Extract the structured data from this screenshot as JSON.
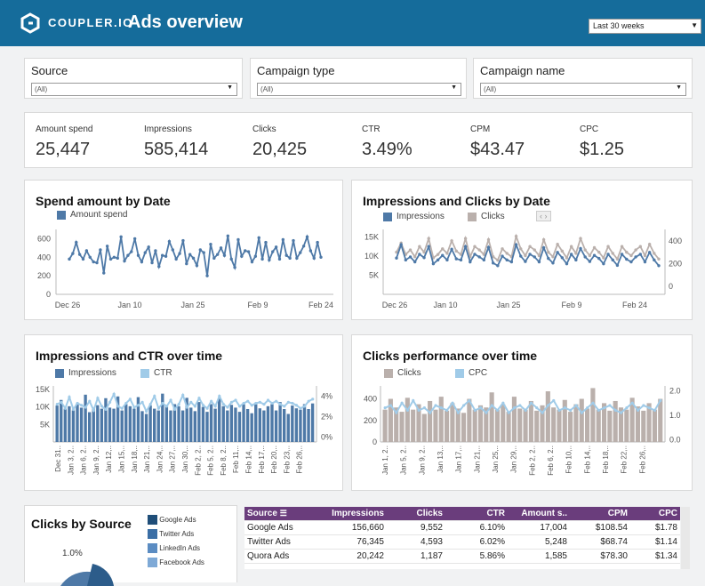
{
  "header": {
    "logo_text": "COUPLER.IO",
    "title": "Ads overview",
    "date_range": "Last 30 weeks"
  },
  "filters": [
    {
      "label": "Source",
      "value": "(All)"
    },
    {
      "label": "Campaign type",
      "value": "(All)"
    },
    {
      "label": "Campaign name",
      "value": "(All)"
    }
  ],
  "kpis": [
    {
      "label": "Amount spend",
      "value": "25,447"
    },
    {
      "label": "Impressions",
      "value": "585,414"
    },
    {
      "label": "Clicks",
      "value": "20,425"
    },
    {
      "label": "CTR",
      "value": "3.49%"
    },
    {
      "label": "CPM",
      "value": "$43.47"
    },
    {
      "label": "CPC",
      "value": "$1.25"
    }
  ],
  "colors": {
    "header": "#156c9b",
    "primary": "#4e79a7",
    "light_blue": "#a0cbe8",
    "gray": "#bab0ac",
    "table_head": "#6a3d7c"
  },
  "chart_data": [
    {
      "type": "line",
      "title": "Spend amount by Date",
      "series": [
        {
          "name": "Amount spend",
          "values": [
            380,
            440,
            560,
            430,
            380,
            470,
            400,
            350,
            340,
            480,
            230,
            520,
            380,
            400,
            390,
            620,
            360,
            420,
            460,
            600,
            420,
            350,
            450,
            510,
            340,
            470,
            300,
            420,
            410,
            570,
            480,
            380,
            440,
            580,
            330,
            430,
            390,
            310,
            480,
            450,
            200,
            540,
            390,
            430,
            500,
            420,
            630,
            380,
            290,
            590,
            410,
            470,
            460,
            350,
            410,
            610,
            380,
            560,
            370,
            460,
            510,
            380,
            590,
            420,
            390,
            580,
            390,
            450,
            520,
            620,
            470,
            390,
            560,
            400
          ]
        }
      ],
      "x_ticks": [
        "Dec 26",
        "Jan 10",
        "Jan 25",
        "Feb 9",
        "Feb 24"
      ],
      "y_ticks": [
        "0",
        "200",
        "400",
        "600"
      ],
      "ylim": [
        0,
        700
      ]
    },
    {
      "type": "line",
      "title": "Impressions and Clicks by Date",
      "series": [
        {
          "name": "Impressions",
          "values": [
            9500,
            13000,
            9000,
            9800,
            8500,
            10500,
            9600,
            12500,
            8000,
            9000,
            10200,
            9000,
            11800,
            9300,
            9000,
            12500,
            8500,
            10500,
            9800,
            9000,
            12300,
            8200,
            7500,
            10000,
            9000,
            8500,
            13000,
            10000,
            8600,
            10500,
            9800,
            8500,
            12200,
            9400,
            8200,
            11000,
            9600,
            8000,
            10500,
            9000,
            12000,
            9800,
            8600,
            10200,
            9400,
            8000,
            10500,
            9000,
            7600,
            10500,
            9200,
            8500,
            9800,
            10500,
            8500,
            11000,
            9000,
            7500
          ]
        },
        {
          "name": "Clicks",
          "values": [
            300,
            380,
            280,
            320,
            260,
            350,
            300,
            420,
            250,
            280,
            330,
            290,
            400,
            310,
            280,
            420,
            260,
            350,
            320,
            280,
            410,
            260,
            230,
            330,
            290,
            260,
            440,
            330,
            270,
            350,
            320,
            270,
            410,
            300,
            260,
            370,
            310,
            250,
            350,
            290,
            420,
            320,
            270,
            340,
            300,
            250,
            350,
            290,
            240,
            350,
            300,
            270,
            320,
            350,
            270,
            370,
            290,
            240
          ]
        }
      ],
      "x_ticks": [
        "Dec 26",
        "Jan 10",
        "Jan 25",
        "Feb 9",
        "Feb 24"
      ],
      "y_left_ticks": [
        "5K",
        "10K",
        "15K"
      ],
      "y_right_ticks": [
        "0",
        "200",
        "400"
      ],
      "page_arrows": "‹ ›"
    },
    {
      "type": "bar",
      "title": "Impressions and CTR over time",
      "series": [
        {
          "name": "Impressions",
          "values": [
            10400,
            12000,
            9500,
            10200,
            9000,
            11000,
            9800,
            13500,
            8500,
            9800,
            10500,
            9500,
            12500,
            9800,
            9500,
            13000,
            9000,
            10800,
            10200,
            9500,
            12800,
            8800,
            8000,
            10400,
            9500,
            9000,
            13800,
            10400,
            9000,
            10800,
            10200,
            9000,
            12600,
            9800,
            8800,
            11400,
            10000,
            8600,
            10800,
            9500,
            12400,
            10200,
            9000,
            10600,
            9800,
            8600,
            10800,
            9400,
            8200,
            10800,
            9600,
            9000,
            10200,
            10800,
            9000,
            11400,
            9400,
            8000,
            10400,
            9600,
            9200,
            10800,
            9400,
            11000
          ]
        },
        {
          "name": "CTR",
          "values": [
            3.2,
            3.4,
            2.8,
            3.9,
            2.7,
            3.3,
            3.1,
            2.9,
            3.5,
            2.6,
            3.8,
            3.0,
            2.7,
            3.4,
            4.2,
            3.0,
            2.8,
            3.3,
            3.7,
            2.9,
            3.1,
            3.4,
            2.5,
            3.2,
            4.0,
            2.8,
            3.3,
            3.0,
            3.6,
            2.7,
            3.2,
            4.1,
            2.9,
            3.4,
            3.0,
            3.8,
            3.1,
            2.8,
            3.5,
            3.0,
            4.0,
            3.2,
            2.9,
            3.4,
            3.6,
            3.0,
            3.3,
            3.5,
            3.1,
            3.3,
            3.4,
            3.2,
            3.6,
            3.3,
            3.5,
            3.2,
            3.0,
            3.4,
            3.3,
            3.1,
            2.8,
            3.0,
            3.5,
            3.7
          ]
        }
      ],
      "x_ticks": [
        "Dec 31..",
        "Jan 3, 2..",
        "Jan 6, 2..",
        "Jan 9, 2..",
        "Jan 12,..",
        "Jan 15,..",
        "Jan 18,..",
        "Jan 21,..",
        "Jan 24,..",
        "Jan 27,..",
        "Jan 30,..",
        "Feb 2, 2..",
        "Feb 5, 2..",
        "Feb 8, 2..",
        "Feb 11,..",
        "Feb 14,..",
        "Feb 17,..",
        "Feb 20,..",
        "Feb 23,..",
        "Feb 26,.."
      ],
      "y_left_ticks": [
        "5K",
        "10K",
        "15K"
      ],
      "y_right_ticks": [
        "0%",
        "2%",
        "4%"
      ]
    },
    {
      "type": "bar",
      "title": "Clicks performance over time",
      "series": [
        {
          "name": "Clicks",
          "values": [
            300,
            400,
            320,
            280,
            410,
            300,
            350,
            260,
            380,
            300,
            420,
            290,
            360,
            310,
            270,
            400,
            300,
            340,
            320,
            460,
            300,
            350,
            280,
            420,
            310,
            300,
            380,
            290,
            340,
            470,
            320,
            300,
            390,
            280,
            350,
            400,
            310,
            500,
            300,
            360,
            290,
            380,
            320,
            300,
            410,
            330,
            290,
            360,
            300,
            400
          ]
        },
        {
          "name": "CPC",
          "values": [
            1.3,
            1.4,
            1.1,
            1.5,
            1.2,
            1.6,
            1.2,
            1.3,
            1.1,
            1.4,
            1.3,
            1.2,
            1.5,
            1.1,
            1.4,
            1.6,
            1.2,
            1.3,
            1.1,
            1.4,
            1.2,
            1.5,
            1.1,
            1.3,
            1.4,
            1.2,
            1.5,
            1.3,
            1.1,
            1.4,
            1.6,
            1.2,
            1.3,
            1.2,
            1.4,
            1.1,
            1.3,
            1.5,
            1.2,
            1.3,
            1.4,
            1.2,
            1.1,
            1.3,
            1.5,
            1.2,
            1.4,
            1.3,
            1.2,
            1.6
          ]
        }
      ],
      "x_ticks": [
        "Jan 1, 2..",
        "Jan 5, 2..",
        "Jan 9, 2..",
        "Jan 13,..",
        "Jan 17,..",
        "Jan 21,..",
        "Jan 25,..",
        "Jan 29,..",
        "Feb 2, 2..",
        "Feb 6, 2..",
        "Feb 10,..",
        "Feb 14,..",
        "Feb 18,..",
        "Feb 22,..",
        "Feb 26,.."
      ],
      "y_left_ticks": [
        "0",
        "200",
        "400"
      ],
      "y_right_ticks": [
        "0.0",
        "1.0",
        "2.0"
      ]
    },
    {
      "type": "pie",
      "title": "Clicks by Source",
      "categories": [
        "Google Ads",
        "Twitter Ads",
        "LinkedIn Ads",
        "Facebook Ads"
      ],
      "visible_label": "1.0%"
    },
    {
      "type": "table",
      "columns": [
        "Source",
        "Impressions",
        "Clicks",
        "CTR",
        "Amount s..",
        "CPM",
        "CPC"
      ],
      "rows": [
        [
          "Google Ads",
          "156,660",
          "9,552",
          "6.10%",
          "17,004",
          "$108.54",
          "$1.78"
        ],
        [
          "Twitter Ads",
          "76,345",
          "4,593",
          "6.02%",
          "5,248",
          "$68.74",
          "$1.14"
        ],
        [
          "Quora Ads",
          "20,242",
          "1,187",
          "5.86%",
          "1,585",
          "$78.30",
          "$1.34"
        ]
      ]
    }
  ]
}
